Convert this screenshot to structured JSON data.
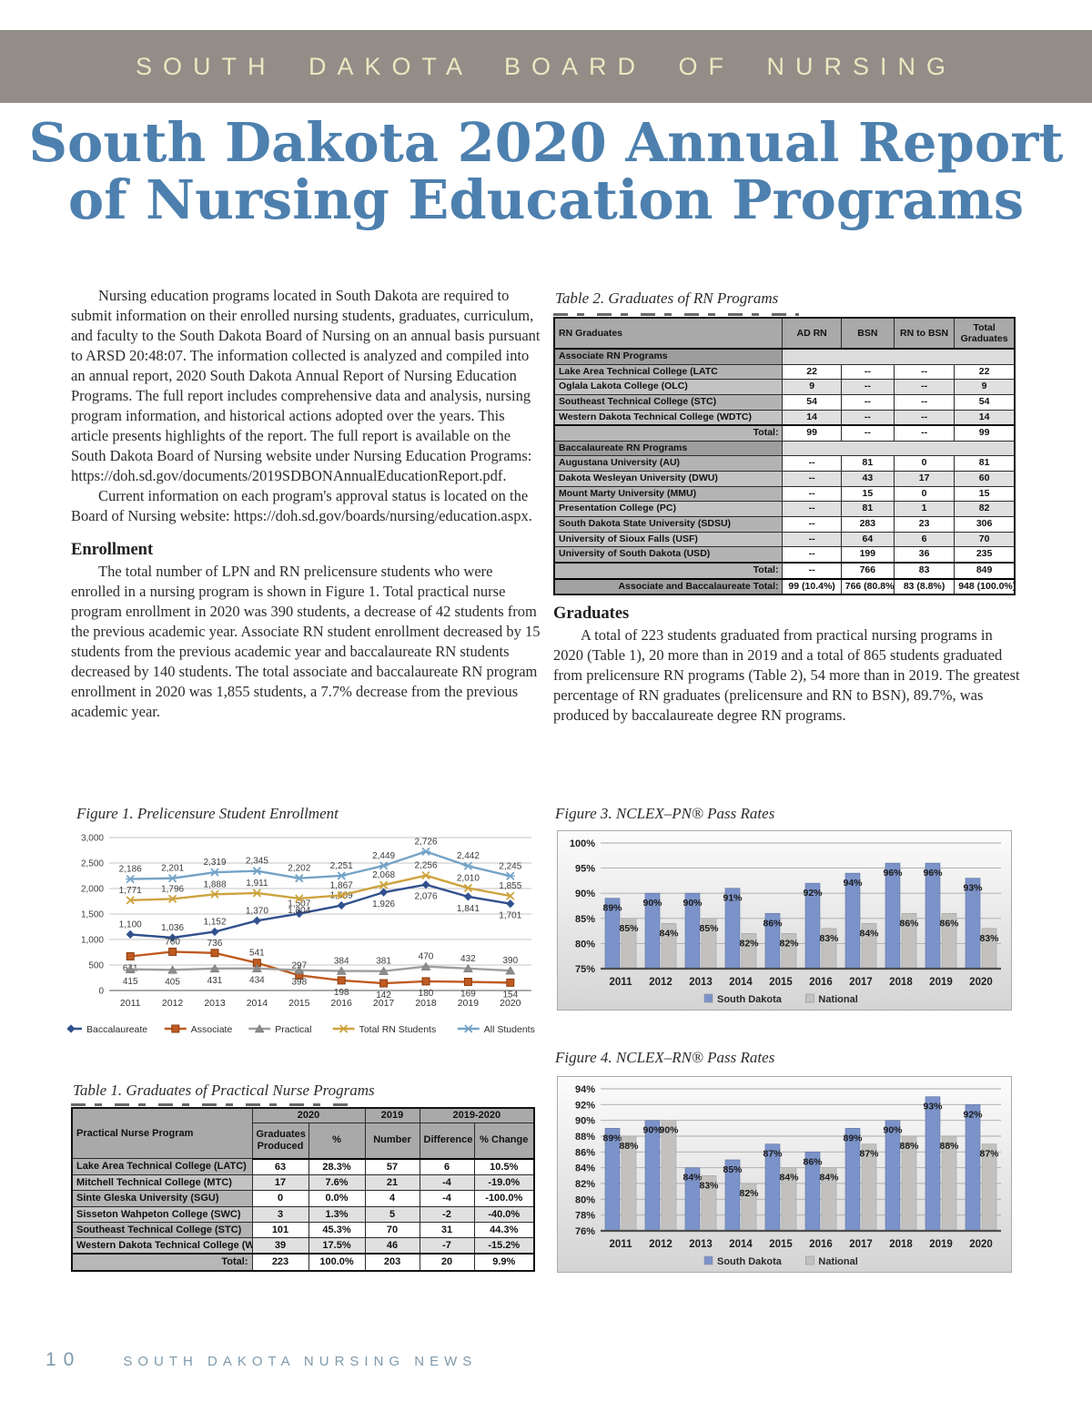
{
  "page": {
    "banner": "SOUTH DAKOTA BOARD OF NURSING",
    "title_line1": "South Dakota 2020 Annual Report",
    "title_line2": "of Nursing Education Programs",
    "footer_page": "10",
    "footer_text": "SOUTH DAKOTA NURSING NEWS"
  },
  "colors": {
    "banner_bg": "#928d87",
    "banner_text": "#ece7c1",
    "title_blue": "#4d80ae",
    "footer_blue": "#7e9aad",
    "sd_bar_blue": "#7b93c9",
    "national_bar_gray": "#c2c1bf"
  },
  "intro": {
    "p1": "Nursing education programs located in South Dakota are required to submit information on their enrolled nursing students, graduates, curriculum, and faculty to the South Dakota Board of Nursing on an annual basis pursuant to ARSD 20:48:07. The information collected is analyzed and compiled into an annual report, 2020 South Dakota Annual Report of Nursing Education Programs. The full report includes comprehensive data and analysis, nursing program information, and historical actions adopted over the years. This article presents highlights of the report. The full report is available on the South Dakota Board of Nursing website under Nursing Education Programs: https://doh.sd.gov/documents/2019SDBONAnnualEducationReport.pdf.",
    "p2": "Current information on each program's approval status is located on the Board of Nursing website: https://doh.sd.gov/boards/nursing/education.aspx."
  },
  "enrollment": {
    "heading": "Enrollment",
    "body": "The total number of LPN and RN prelicensure students who were enrolled in a nursing program is shown in Figure 1. Total practical nurse program enrollment in 2020 was 390 students, a decrease of 42 students from the previous academic year. Associate RN student enrollment decreased by 15 students from the previous academic year and baccalaureate RN students decreased by 140 students. The total associate and baccalaureate RN program enrollment in 2020 was 1,855 students, a 7.7% decrease from the previous academic year."
  },
  "graduates": {
    "heading": "Graduates",
    "body": "A total of 223 students graduated from practical nursing programs in 2020 (Table 1), 20 more than in 2019 and a total of 865 students graduated from prelicensure RN programs (Table 2), 54 more than in 2019.  The greatest percentage of RN graduates (prelicensure and RN to BSN), 89.7%, was produced by baccalaureate degree RN programs."
  },
  "table2": {
    "caption": "Table 2. Graduates of RN Programs",
    "headers": [
      "RN Graduates",
      "AD RN",
      "BSN",
      "RN to BSN",
      "Total Graduates"
    ],
    "sections": [
      {
        "label": "Associate RN Programs",
        "rows": [
          [
            "Lake Area Technical College (LATC",
            "22",
            "--",
            "--",
            "22"
          ],
          [
            "Oglala Lakota College (OLC)",
            "9",
            "--",
            "--",
            "9"
          ],
          [
            "Southeast Technical College (STC)",
            "54",
            "--",
            "--",
            "54"
          ],
          [
            "Western Dakota Technical College (WDTC)",
            "14",
            "--",
            "--",
            "14"
          ]
        ],
        "total": [
          "Total:",
          "99",
          "--",
          "--",
          "99"
        ]
      },
      {
        "label": "Baccalaureate RN Programs",
        "rows": [
          [
            "Augustana University (AU)",
            "--",
            "81",
            "0",
            "81"
          ],
          [
            "Dakota Wesleyan University (DWU)",
            "--",
            "43",
            "17",
            "60"
          ],
          [
            "Mount Marty University (MMU)",
            "--",
            "15",
            "0",
            "15"
          ],
          [
            "Presentation College (PC)",
            "--",
            "81",
            "1",
            "82"
          ],
          [
            "South Dakota State University (SDSU)",
            "--",
            "283",
            "23",
            "306"
          ],
          [
            "University of Sioux Falls (USF)",
            "--",
            "64",
            "6",
            "70"
          ],
          [
            "University of South Dakota (USD)",
            "--",
            "199",
            "36",
            "235"
          ]
        ],
        "total": [
          "Total:",
          "--",
          "766",
          "83",
          "849"
        ]
      }
    ],
    "grand_total": [
      "Associate and Baccalaureate Total:",
      "99 (10.4%)",
      "766 (80.8%)",
      "83 (8.8%)",
      "948 (100.0%)"
    ]
  },
  "table1": {
    "caption": "Table 1. Graduates of Practical Nurse Programs",
    "group_headers": [
      "2020",
      "2019",
      "2019-2020"
    ],
    "headers": [
      "Practical Nurse Program",
      "Graduates Produced",
      "%",
      "Number",
      "Difference",
      "% Change"
    ],
    "rows": [
      [
        "Lake Area Technical College (LATC)",
        "63",
        "28.3%",
        "57",
        "6",
        "10.5%"
      ],
      [
        "Mitchell Technical College (MTC)",
        "17",
        "7.6%",
        "21",
        "-4",
        "-19.0%"
      ],
      [
        "Sinte Gleska University (SGU)",
        "0",
        "0.0%",
        "4",
        "-4",
        "-100.0%"
      ],
      [
        "Sisseton Wahpeton College (SWC)",
        "3",
        "1.3%",
        "5",
        "-2",
        "-40.0%"
      ],
      [
        "Southeast Technical College (STC)",
        "101",
        "45.3%",
        "70",
        "31",
        "44.3%"
      ],
      [
        "Western Dakota Technical College (WDTC)",
        "39",
        "17.5%",
        "46",
        "-7",
        "-15.2%"
      ]
    ],
    "total": [
      "Total:",
      "223",
      "100.0%",
      "203",
      "20",
      "9.9%"
    ]
  },
  "chart_data": [
    {
      "id": "fig1",
      "type": "line",
      "title": "Figure 1. Prelicensure Student Enrollment",
      "x": [
        "2011",
        "2012",
        "2013",
        "2014",
        "2015",
        "2016",
        "2017",
        "2018",
        "2019",
        "2020"
      ],
      "ylim": [
        0,
        3000
      ],
      "ytick_step": 500,
      "grid": true,
      "legend_position": "bottom",
      "series": [
        {
          "name": "Baccalaureate",
          "color": "#31518e",
          "marker": "diamond",
          "values": [
            1100,
            1036,
            1152,
            1370,
            1507,
            1669,
            1926,
            2076,
            1841,
            1701
          ],
          "label_pos": [
            "a",
            "a",
            "a",
            "a",
            "a",
            "a",
            "b",
            "b",
            "b",
            "b"
          ]
        },
        {
          "name": "Associate",
          "color": "#bf5b21",
          "marker": "square",
          "values": [
            671,
            760,
            736,
            541,
            297,
            198,
            142,
            180,
            169,
            154
          ],
          "label_pos": [
            "b",
            "a",
            "a",
            "a",
            "a",
            "b",
            "b",
            "b",
            "b",
            "b"
          ]
        },
        {
          "name": "Practical",
          "color": "#9e9e9e",
          "marker": "triangle",
          "values": [
            415,
            405,
            431,
            434,
            398,
            384,
            381,
            470,
            432,
            390
          ],
          "label_pos": [
            "b",
            "b",
            "b",
            "b",
            "b",
            "a",
            "a",
            "a",
            "a",
            "a"
          ]
        },
        {
          "name": "Total RN Students",
          "color": "#cda33f",
          "marker": "x",
          "values": [
            1771,
            1796,
            1888,
            1911,
            1804,
            1867,
            2068,
            2256,
            2010,
            1855
          ],
          "label_pos": [
            "a",
            "a",
            "a",
            "a",
            "b",
            "a",
            "a",
            "a",
            "a",
            "a"
          ]
        },
        {
          "name": "All Students",
          "color": "#74a3c7",
          "marker": "xstar",
          "values": [
            2186,
            2201,
            2319,
            2345,
            2202,
            2251,
            2449,
            2726,
            2442,
            2245
          ],
          "label_pos": [
            "a",
            "a",
            "a",
            "a",
            "a",
            "a",
            "a",
            "a",
            "a",
            "a"
          ]
        }
      ]
    },
    {
      "id": "fig3",
      "type": "bar",
      "title": "Figure 3. NCLEX–PN® Pass Rates",
      "categories": [
        "2011",
        "2012",
        "2013",
        "2014",
        "2015",
        "2016",
        "2017",
        "2018",
        "2019",
        "2020"
      ],
      "ylim": [
        75,
        100
      ],
      "ytick_step": 5,
      "unit": "%",
      "grid": true,
      "legend_position": "bottom",
      "series": [
        {
          "name": "South Dakota",
          "color": "#7b93c9",
          "values": [
            89,
            90,
            90,
            91,
            86,
            92,
            94,
            96,
            96,
            93
          ]
        },
        {
          "name": "National",
          "color": "#c2c1bf",
          "values": [
            85,
            84,
            85,
            82,
            82,
            83,
            84,
            86,
            86,
            83
          ]
        }
      ]
    },
    {
      "id": "fig4",
      "type": "bar",
      "title": "Figure 4. NCLEX–RN® Pass Rates",
      "categories": [
        "2011",
        "2012",
        "2013",
        "2014",
        "2015",
        "2016",
        "2017",
        "2018",
        "2019",
        "2020"
      ],
      "ylim": [
        76,
        94
      ],
      "ytick_step": 2,
      "unit": "%",
      "grid": true,
      "legend_position": "bottom",
      "series": [
        {
          "name": "South Dakota",
          "color": "#7b93c9",
          "values": [
            89,
            90,
            84,
            85,
            87,
            86,
            89,
            90,
            93,
            92
          ]
        },
        {
          "name": "National",
          "color": "#c2c1bf",
          "values": [
            88,
            90,
            83,
            82,
            84,
            84,
            87,
            88,
            88,
            87
          ]
        }
      ]
    }
  ]
}
